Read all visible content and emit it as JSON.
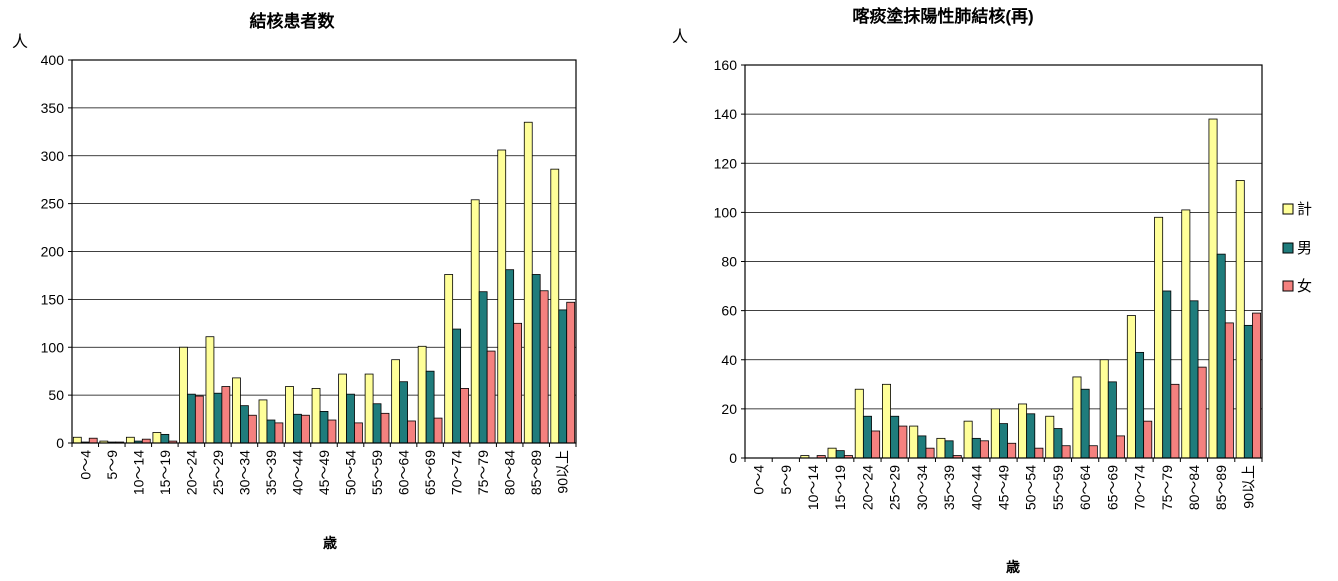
{
  "chart_data": [
    {
      "type": "bar",
      "title": "結核患者数",
      "ylabel": "人",
      "xlabel": "歳",
      "ylim": [
        0,
        400
      ],
      "yticks": [
        0,
        50,
        100,
        150,
        200,
        250,
        300,
        350,
        400
      ],
      "grid": true,
      "categories": [
        "0～4",
        "5～9",
        "10～14",
        "15～19",
        "20～24",
        "25～29",
        "30～34",
        "35～39",
        "40～44",
        "45～49",
        "50～54",
        "55～59",
        "60～64",
        "65～69",
        "70～74",
        "75～79",
        "80～84",
        "85～89",
        "90以上"
      ],
      "series": [
        {
          "color": "#FFFF99",
          "values": [
            6,
            2,
            6,
            11,
            100,
            111,
            68,
            45,
            59,
            57,
            72,
            72,
            87,
            101,
            176,
            254,
            306,
            335,
            286
          ]
        },
        {
          "color": "#1F7C7C",
          "values": [
            1,
            1,
            2,
            9,
            51,
            52,
            39,
            24,
            30,
            33,
            51,
            41,
            64,
            75,
            119,
            158,
            181,
            176,
            139
          ]
        },
        {
          "color": "#F4817F",
          "values": [
            5,
            1,
            4,
            2,
            49,
            59,
            29,
            21,
            29,
            24,
            21,
            31,
            23,
            26,
            57,
            96,
            125,
            159,
            147
          ]
        }
      ]
    },
    {
      "type": "bar",
      "title": "喀痰塗抹陽性肺結核(再)",
      "ylabel": "人",
      "xlabel": "歳",
      "ylim": [
        0,
        160
      ],
      "yticks": [
        0,
        20,
        40,
        60,
        80,
        100,
        120,
        140,
        160
      ],
      "grid": true,
      "legend": "right",
      "categories": [
        "0～4",
        "5～9",
        "10～14",
        "15～19",
        "20～24",
        "25～29",
        "30～34",
        "35～39",
        "40～44",
        "45～49",
        "50～54",
        "55～59",
        "60～64",
        "65～69",
        "70～74",
        "75～79",
        "80～84",
        "85～89",
        "90以上"
      ],
      "series": [
        {
          "name": "計",
          "color": "#FFFF99",
          "values": [
            0,
            0,
            1,
            4,
            28,
            30,
            13,
            8,
            15,
            20,
            22,
            17,
            33,
            40,
            58,
            98,
            101,
            138,
            113
          ]
        },
        {
          "name": "男",
          "color": "#1F7C7C",
          "values": [
            0,
            0,
            0,
            3,
            17,
            17,
            9,
            7,
            8,
            14,
            18,
            12,
            28,
            31,
            43,
            68,
            64,
            83,
            54
          ]
        },
        {
          "name": "女",
          "color": "#F4817F",
          "values": [
            0,
            0,
            1,
            1,
            11,
            13,
            4,
            1,
            7,
            6,
            4,
            5,
            5,
            9,
            15,
            30,
            37,
            55,
            59
          ]
        }
      ]
    }
  ]
}
